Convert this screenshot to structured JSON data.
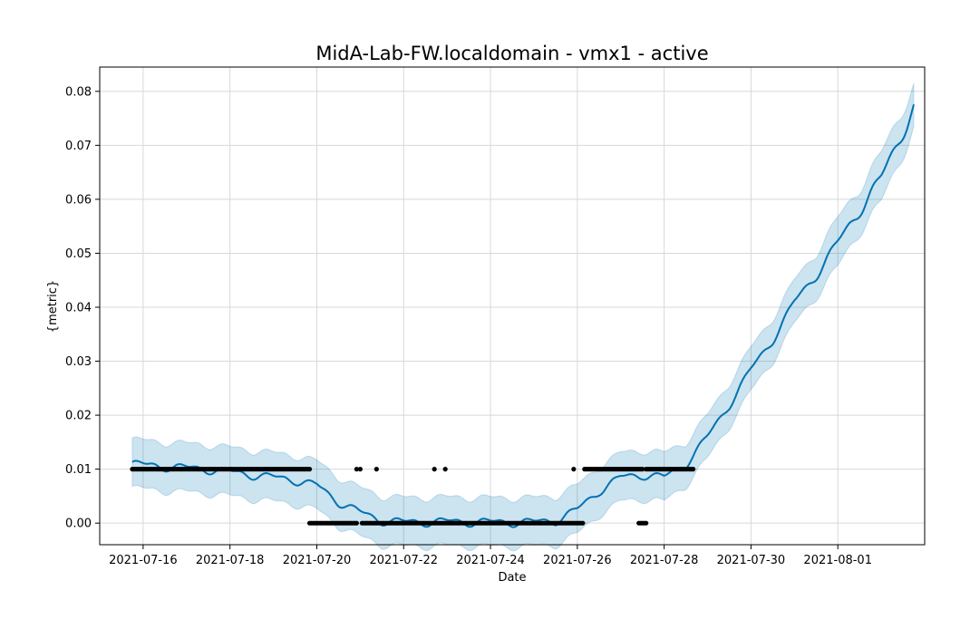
{
  "chart_data": {
    "type": "line",
    "title": "MidA-Lab-FW.localdomain - vmx1 - active",
    "xlabel": "Date",
    "ylabel": "{metric}",
    "xlim": [
      "2021-07-15",
      "2021-08-03"
    ],
    "ylim": [
      -0.004,
      0.0845
    ],
    "grid": true,
    "x_ticks": [
      "2021-07-16",
      "2021-07-18",
      "2021-07-20",
      "2021-07-22",
      "2021-07-24",
      "2021-07-26",
      "2021-07-28",
      "2021-07-30",
      "2021-08-01"
    ],
    "y_ticks": [
      "0.00",
      "0.01",
      "0.02",
      "0.03",
      "0.04",
      "0.05",
      "0.06",
      "0.07",
      "0.08"
    ],
    "colors": {
      "forecast": "#0072b2",
      "interval": "#0072b2",
      "observed": "#000000"
    },
    "forecast": {
      "x": [
        "2021-07-15 18:00",
        "2021-07-16 12:00",
        "2021-07-17 12:00",
        "2021-07-18 12:00",
        "2021-07-19 00:00",
        "2021-07-19 12:00",
        "2021-07-20 00:00",
        "2021-07-20 12:00",
        "2021-07-21 00:00",
        "2021-07-21 12:00",
        "2021-07-22 00:00",
        "2021-07-23 00:00",
        "2021-07-24 00:00",
        "2021-07-25 00:00",
        "2021-07-25 12:00",
        "2021-07-26 00:00",
        "2021-07-26 12:00",
        "2021-07-27 00:00",
        "2021-07-27 12:00",
        "2021-07-28 00:00",
        "2021-07-28 12:00",
        "2021-07-29 00:00",
        "2021-07-29 12:00",
        "2021-07-30 00:00",
        "2021-07-30 12:00",
        "2021-07-31 00:00",
        "2021-07-31 12:00",
        "2021-08-01 00:00",
        "2021-08-01 12:00",
        "2021-08-02 00:00",
        "2021-08-02 18:00"
      ],
      "yhat": [
        0.011,
        0.0105,
        0.01,
        0.009,
        0.0085,
        0.008,
        0.007,
        0.004,
        0.002,
        0.0005,
        0.0002,
        0.0003,
        0.0002,
        0.0002,
        0.0005,
        0.0025,
        0.006,
        0.0085,
        0.009,
        0.0085,
        0.011,
        0.016,
        0.022,
        0.0285,
        0.034,
        0.041,
        0.046,
        0.052,
        0.058,
        0.064,
        0.077
      ],
      "lower": [
        0.0065,
        0.006,
        0.0055,
        0.0045,
        0.004,
        0.0035,
        0.0025,
        -0.0005,
        -0.0025,
        -0.004,
        -0.0043,
        -0.0042,
        -0.0043,
        -0.0043,
        -0.004,
        -0.002,
        0.0015,
        0.004,
        0.0045,
        0.004,
        0.007,
        0.012,
        0.018,
        0.0245,
        0.03,
        0.037,
        0.042,
        0.0475,
        0.054,
        0.0595,
        0.073
      ],
      "upper": [
        0.0155,
        0.015,
        0.0145,
        0.0135,
        0.013,
        0.0125,
        0.0115,
        0.0085,
        0.0065,
        0.005,
        0.0047,
        0.0048,
        0.0047,
        0.0047,
        0.005,
        0.007,
        0.0105,
        0.013,
        0.0135,
        0.013,
        0.015,
        0.02,
        0.026,
        0.0325,
        0.038,
        0.045,
        0.05,
        0.0565,
        0.062,
        0.0685,
        0.081
      ]
    },
    "observed": [
      {
        "from": "2021-07-15 18:00",
        "to": "2021-07-19 20:00",
        "y": 0.01
      },
      {
        "from": "2021-07-19 20:00",
        "to": "2021-07-20 22:00",
        "y": 0.0
      },
      {
        "x": "2021-07-20 22:00",
        "y": 0.01
      },
      {
        "x": "2021-07-21 00:00",
        "y": 0.01
      },
      {
        "from": "2021-07-21 01:00",
        "to": "2021-07-25 21:00",
        "y": 0.0
      },
      {
        "x": "2021-07-21 09:00",
        "y": 0.01
      },
      {
        "x": "2021-07-22 17:00",
        "y": 0.01
      },
      {
        "x": "2021-07-22 23:00",
        "y": 0.01
      },
      {
        "x": "2021-07-25 22:00",
        "y": 0.01
      },
      {
        "from": "2021-07-25 22:00",
        "to": "2021-07-26 03:00",
        "y": 0.0
      },
      {
        "from": "2021-07-26 04:00",
        "to": "2021-07-27 12:00",
        "y": 0.01
      },
      {
        "from": "2021-07-27 10:00",
        "to": "2021-07-27 14:00",
        "y": 0.0
      },
      {
        "from": "2021-07-27 14:00",
        "to": "2021-07-28 16:00",
        "y": 0.01
      }
    ]
  }
}
